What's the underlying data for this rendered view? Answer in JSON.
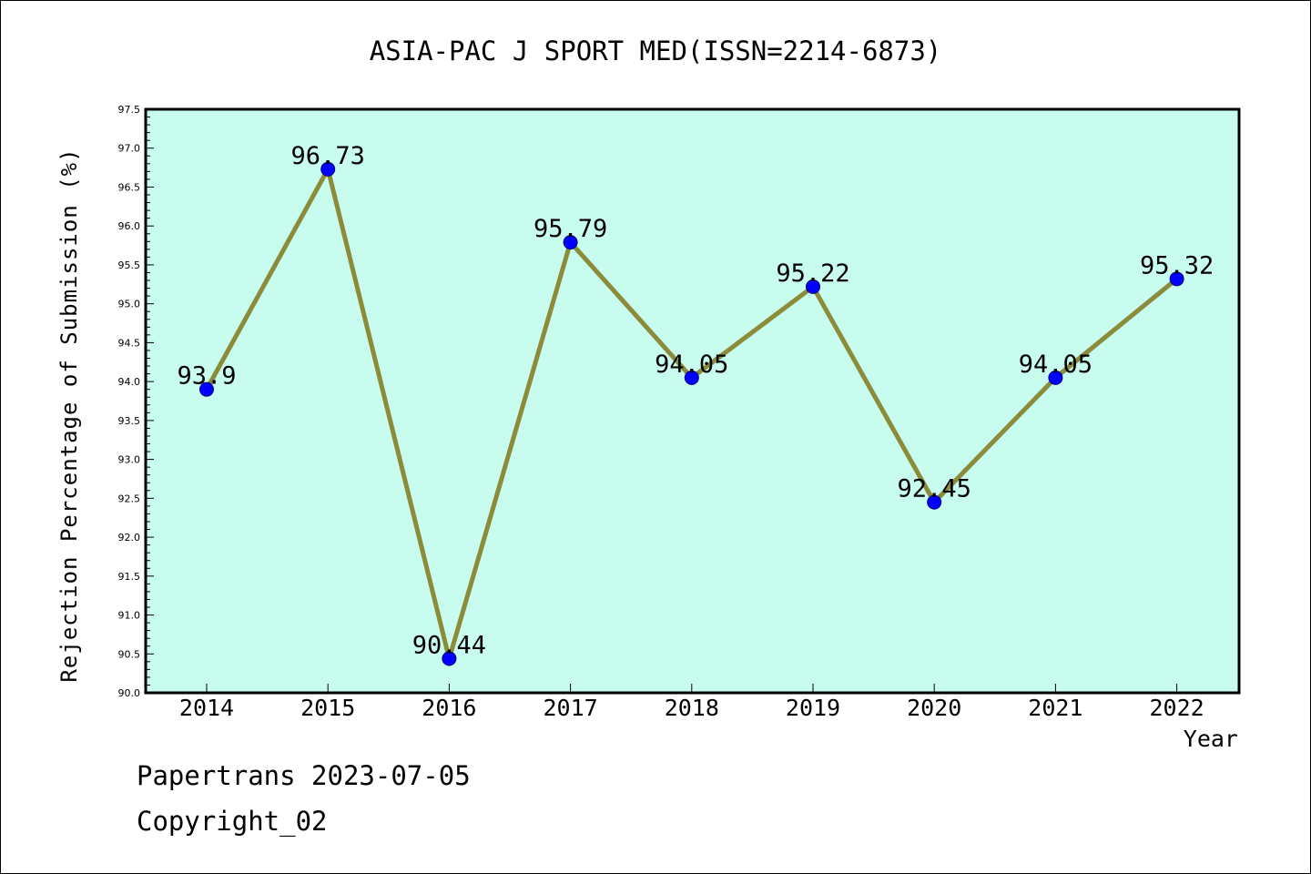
{
  "chart_data": {
    "type": "line",
    "title": "ASIA-PAC J SPORT MED(ISSN=2214-6873)",
    "xlabel": "Year",
    "ylabel": "Rejection Percentage of Submission (%)",
    "categories": [
      "2014",
      "2015",
      "2016",
      "2017",
      "2018",
      "2019",
      "2020",
      "2021",
      "2022"
    ],
    "values": [
      93.9,
      96.73,
      90.44,
      95.79,
      94.05,
      95.22,
      92.45,
      94.05,
      95.32
    ],
    "data_labels": [
      "93.9",
      "96.73",
      "90.44",
      "95.79",
      "94.05",
      "95.22",
      "92.45",
      "94.05",
      "95.32"
    ],
    "ylim": [
      90.0,
      97.5
    ],
    "yticks": [
      "90.0",
      "90.5",
      "91.0",
      "91.5",
      "92.0",
      "92.5",
      "93.0",
      "93.5",
      "94.0",
      "94.5",
      "95.0",
      "95.5",
      "96.0",
      "96.5",
      "97.0",
      "97.5"
    ],
    "grid": false,
    "legend": "none",
    "colors": {
      "plot_background": "#c8fcee",
      "line": "#8b8b3a",
      "marker": "#0000ff"
    }
  },
  "footer": {
    "source": "Papertrans 2023-07-05",
    "copyright": "Copyright_02"
  }
}
